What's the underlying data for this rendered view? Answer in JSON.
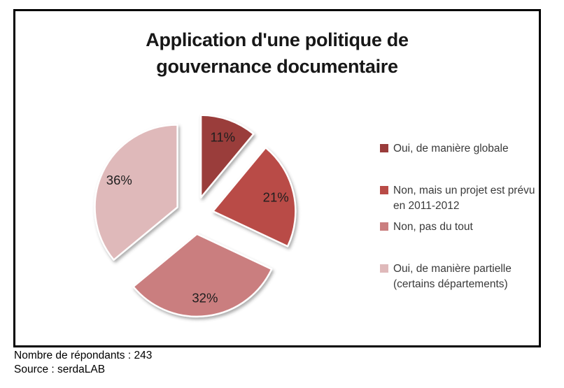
{
  "chart_data": {
    "type": "pie",
    "title": "Application d'une politique de gouvernance documentaire",
    "legend_position": "right",
    "start_angle_deg": 0,
    "direction": "clockwise",
    "exploded": true,
    "slices": [
      {
        "label": "Oui, de manière globale",
        "value": 11,
        "pct_label": "11%",
        "color": "#9a3c3b"
      },
      {
        "label": "Non, mais un projet est prévu en 2011-2012",
        "value": 21,
        "pct_label": "21%",
        "color": "#b94b47"
      },
      {
        "label": "Non, pas du tout",
        "value": 32,
        "pct_label": "32%",
        "color": "#ca7e7f"
      },
      {
        "label": "Oui, de manière partielle (certains départements)",
        "value": 36,
        "pct_label": "36%",
        "color": "#dfb9ba"
      }
    ],
    "label_color": "#1e1e1e",
    "slice_border_color": "#ffffff"
  },
  "footer": {
    "respondents": "Nombre de répondants : 243",
    "source": "Source : serdaLAB"
  }
}
